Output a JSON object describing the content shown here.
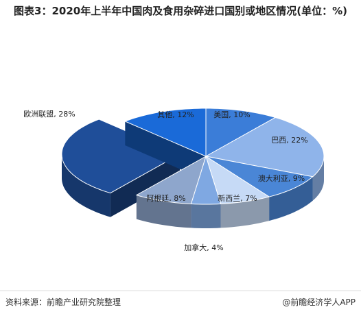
{
  "chart_data": {
    "type": "pie",
    "title": "图表3：2020年上半年中国肉及食用杂碎进口国别或地区情况(单位：%)",
    "values": [
      10,
      22,
      9,
      7,
      4,
      8,
      28,
      12
    ],
    "value_labels": [
      "美国, 10%",
      "巴西, 22%",
      "澳大利亚, 9%",
      "新西兰, 7%",
      "加拿大, 4%",
      "阿根廷, 8%",
      "欧洲联盟, 28%",
      "其他, 12%"
    ],
    "colors": [
      "#3b7dd8",
      "#8fb4ea",
      "#4a86d6",
      "#c6daf6",
      "#7fa8e2",
      "#8ea6cc",
      "#1f4e99",
      "#1a6ad8"
    ],
    "exploded": 6,
    "source": "资料来源：前瞻产业研究院整理",
    "credit": "@前瞻经济学人APP"
  }
}
